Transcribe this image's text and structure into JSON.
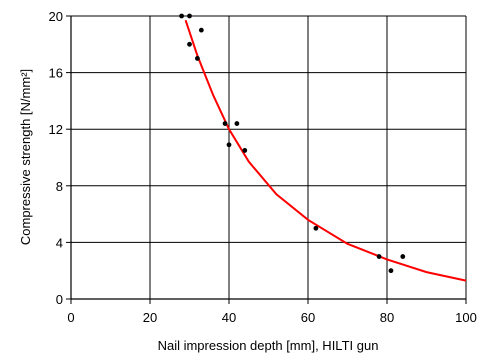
{
  "chart_data": {
    "type": "scatter",
    "title": "",
    "xlabel": "Nail impression depth [mm], HILTI gun",
    "ylabel": "Compressive strength [N/mm²]",
    "xlim": [
      0,
      100
    ],
    "ylim": [
      0,
      20
    ],
    "xticks": [
      "0",
      "20",
      "40",
      "60",
      "80",
      "100"
    ],
    "yticks": [
      "0",
      "4",
      "8",
      "12",
      "16",
      "20"
    ],
    "grid": true,
    "points": [
      {
        "x": 28,
        "y": 20
      },
      {
        "x": 30,
        "y": 20
      },
      {
        "x": 30,
        "y": 18
      },
      {
        "x": 32,
        "y": 17
      },
      {
        "x": 33,
        "y": 19
      },
      {
        "x": 39,
        "y": 12.4
      },
      {
        "x": 40,
        "y": 10.9
      },
      {
        "x": 42,
        "y": 12.4
      },
      {
        "x": 44,
        "y": 10.5
      },
      {
        "x": 62,
        "y": 5
      },
      {
        "x": 78,
        "y": 3
      },
      {
        "x": 81,
        "y": 2
      },
      {
        "x": 84,
        "y": 3
      }
    ],
    "fit_curve": {
      "color": "#ff0000",
      "x": [
        29,
        32,
        36,
        40,
        45,
        52,
        60,
        70,
        80,
        90,
        100
      ],
      "y": [
        19.7,
        17.2,
        14.4,
        12.0,
        9.7,
        7.4,
        5.6,
        3.9,
        2.8,
        1.9,
        1.3
      ]
    },
    "point_color": "#000000"
  }
}
